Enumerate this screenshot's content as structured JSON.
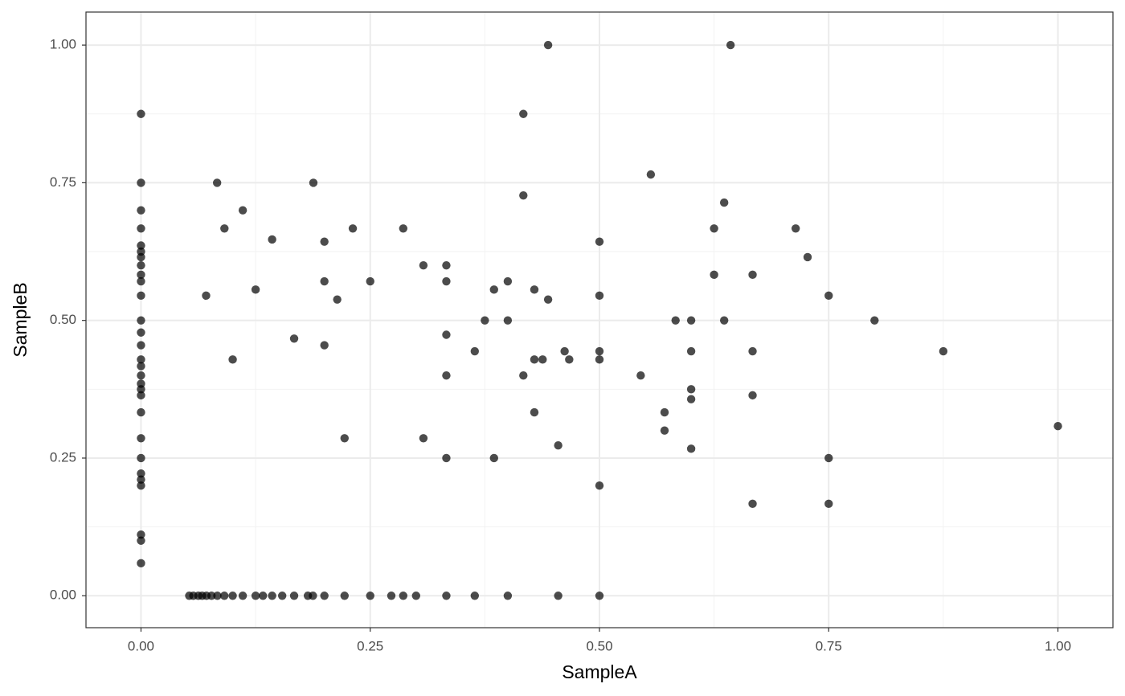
{
  "chart_data": {
    "type": "scatter",
    "x_label": "SampleA",
    "y_label": "SampleB",
    "color": "#000000",
    "alpha": 0.7,
    "grid": true,
    "xlim": [
      -0.06,
      1.06
    ],
    "ylim": [
      -0.058,
      1.06
    ],
    "xticks": [
      {
        "value": 0,
        "label": "0.00"
      },
      {
        "value": 0.25,
        "label": "0.25"
      },
      {
        "value": 0.5,
        "label": "0.50"
      },
      {
        "value": 0.75,
        "label": "0.75"
      },
      {
        "value": 1,
        "label": "1.00"
      }
    ],
    "yticks": [
      {
        "value": 0,
        "label": "0.00"
      },
      {
        "value": 0.25,
        "label": "0.25"
      },
      {
        "value": 0.5,
        "label": "0.50"
      },
      {
        "value": 0.75,
        "label": "0.75"
      },
      {
        "value": 1,
        "label": "1.00"
      }
    ],
    "xminor": [
      0.125,
      0.375,
      0.625,
      0.875
    ],
    "yminor": [
      0.125,
      0.375,
      0.625,
      0.875
    ],
    "x": [
      0,
      0,
      0,
      0,
      0,
      0,
      0,
      0,
      0,
      0,
      0,
      0,
      0,
      0,
      0,
      0,
      0,
      0,
      0,
      0,
      0,
      0,
      0,
      0,
      0,
      0,
      0,
      0,
      0,
      0.0526,
      0.0571,
      0.0625,
      0.0667,
      0.0714,
      0.0769,
      0.0833,
      0.0909,
      0.1,
      0.111,
      0.125,
      0.133,
      0.143,
      0.154,
      0.167,
      0.182,
      0.1875,
      0.2,
      0.222,
      0.25,
      0.273,
      0.286,
      0.3,
      0.333,
      0.364,
      0.4,
      0.455,
      0.5,
      0.083,
      0.091,
      0.111,
      0.071,
      0.125,
      0.1,
      0.143,
      0.167,
      0.188,
      0.2,
      0.2,
      0.2,
      0.214,
      0.222,
      0.231,
      0.25,
      0.286,
      0.308,
      0.308,
      0.333,
      0.333,
      0.333,
      0.333,
      0.333,
      0.364,
      0.375,
      0.385,
      0.385,
      0.4,
      0.4,
      0.429,
      0.429,
      0.429,
      0.438,
      0.444,
      0.444,
      0.417,
      0.417,
      0.417,
      0.455,
      0.462,
      0.467,
      0.5,
      0.5,
      0.5,
      0.5,
      0.5,
      0.545,
      0.556,
      0.571,
      0.571,
      0.583,
      0.6,
      0.6,
      0.6,
      0.6,
      0.6,
      0.625,
      0.625,
      0.636,
      0.636,
      0.643,
      0.667,
      0.667,
      0.667,
      0.667,
      0.714,
      0.727,
      0.75,
      0.75,
      0.75,
      0.8,
      0.875,
      1.0
    ],
    "values": [
      0.875,
      0.75,
      0.7,
      0.667,
      0.636,
      0.625,
      0.615,
      0.6,
      0.583,
      0.571,
      0.545,
      0.5,
      0.478,
      0.455,
      0.417,
      0.429,
      0.4,
      0.385,
      0.375,
      0.364,
      0.333,
      0.286,
      0.25,
      0.222,
      0.211,
      0.2,
      0.111,
      0.1,
      0.059,
      0,
      0,
      0,
      0,
      0,
      0,
      0,
      0,
      0,
      0,
      0,
      0,
      0,
      0,
      0,
      0,
      0,
      0,
      0,
      0,
      0,
      0,
      0,
      0,
      0,
      0,
      0,
      0,
      0.75,
      0.667,
      0.7,
      0.545,
      0.556,
      0.429,
      0.647,
      0.467,
      0.75,
      0.643,
      0.571,
      0.455,
      0.538,
      0.286,
      0.667,
      0.571,
      0.667,
      0.6,
      0.286,
      0.6,
      0.571,
      0.474,
      0.4,
      0.25,
      0.444,
      0.5,
      0.556,
      0.25,
      0.571,
      0.5,
      0.429,
      0.556,
      0.333,
      0.429,
      1.0,
      0.538,
      0.4,
      0.875,
      0.727,
      0.273,
      0.444,
      0.429,
      0.643,
      0.545,
      0.444,
      0.429,
      0.2,
      0.4,
      0.765,
      0.333,
      0.3,
      0.5,
      0.5,
      0.444,
      0.375,
      0.357,
      0.267,
      0.667,
      0.583,
      0.714,
      0.5,
      1.0,
      0.583,
      0.444,
      0.364,
      0.167,
      0.667,
      0.615,
      0.545,
      0.25,
      0.167,
      0.5,
      0.444,
      0.308
    ]
  }
}
